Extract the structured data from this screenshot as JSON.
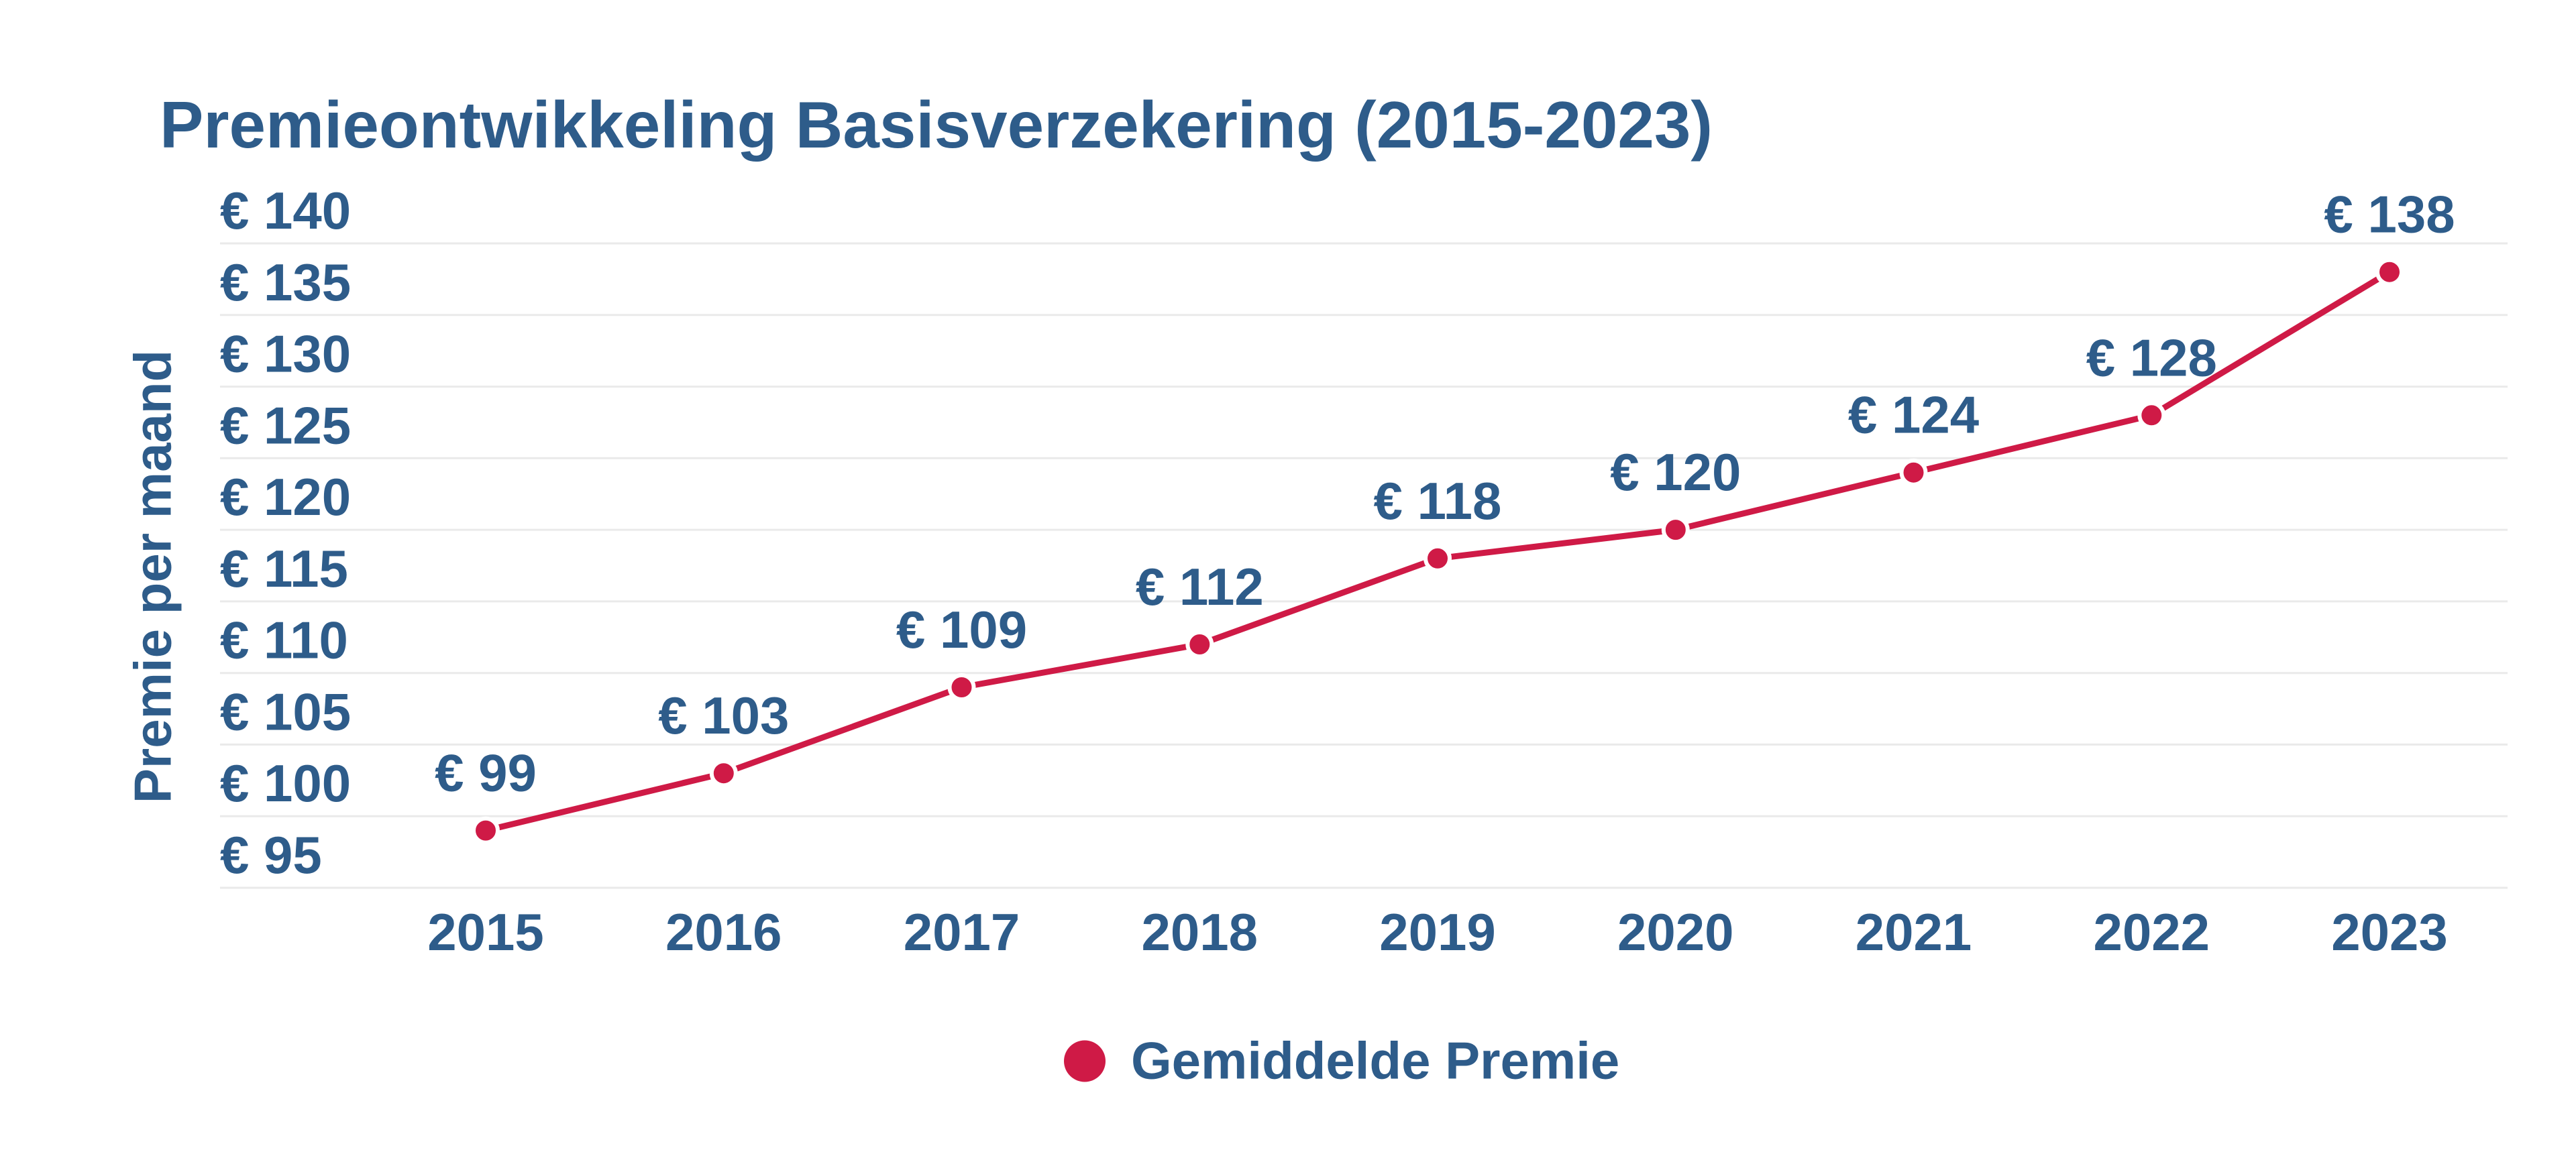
{
  "page": {
    "background": "#ffffff"
  },
  "colors": {
    "text_blue": "#2e5c8a",
    "series_red": "#cf1a46",
    "gridline": "#eaeaea",
    "point_border": "#ffffff"
  },
  "chart_data": {
    "type": "line",
    "title": "Premieontwikkeling Basisverzekering (2015-2023)",
    "ylabel": "Premie per maand",
    "xlabel": "",
    "categories": [
      "2015",
      "2016",
      "2017",
      "2018",
      "2019",
      "2020",
      "2021",
      "2022",
      "2023"
    ],
    "series": [
      {
        "name": "Gemiddelde Premie",
        "color": "#cf1a46",
        "values": [
          99,
          103,
          109,
          112,
          118,
          120,
          124,
          128,
          138
        ]
      }
    ],
    "ylim": [
      95,
      140
    ],
    "y_tick_step": 5,
    "value_prefix": "€ ",
    "y_tick_labels": [
      "€ 95",
      "€ 100",
      "€ 105",
      "€ 110",
      "€ 115",
      "€ 120",
      "€ 125",
      "€ 130",
      "€ 135",
      "€ 140"
    ],
    "point_labels": [
      "€ 99",
      "€ 103",
      "€ 109",
      "€ 112",
      "€ 118",
      "€ 120",
      "€ 124",
      "€ 128",
      "€ 138"
    ],
    "grid": "horizontal",
    "legend_position": "bottom"
  },
  "legend": {
    "items": [
      {
        "label": "Gemiddelde Premie",
        "color": "#cf1a46"
      }
    ]
  }
}
